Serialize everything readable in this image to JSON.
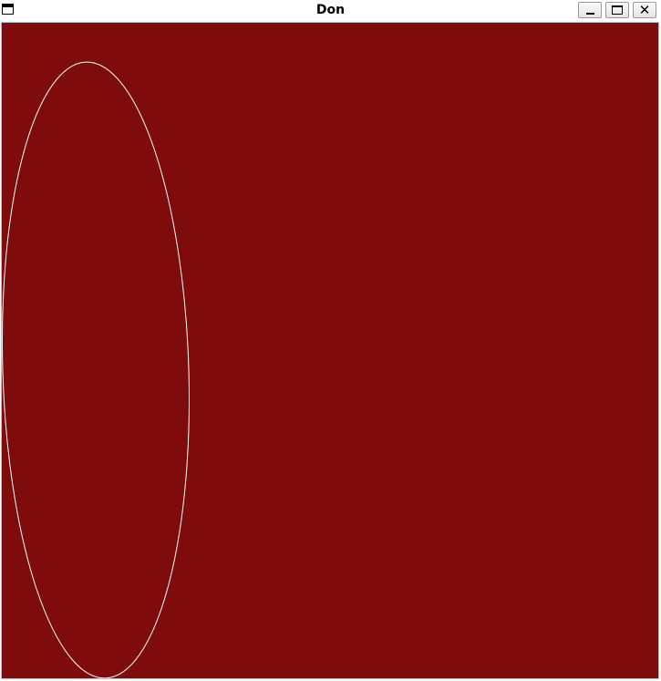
{
  "window": {
    "title": "Don",
    "minimize_icon": "minimize-icon",
    "maximize_icon": "maximize-icon",
    "close_icon": "close-icon",
    "app_icon": "window-icon"
  },
  "canvas": {
    "background_color": "#7f0c0c",
    "shape_stroke_color": "#ffffff",
    "shape": "ellipse"
  }
}
